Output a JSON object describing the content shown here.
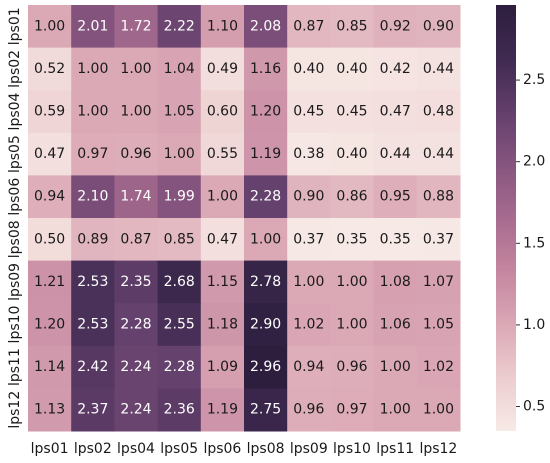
{
  "chart_data": {
    "type": "heatmap",
    "x_labels": [
      "lps01",
      "lps02",
      "lps04",
      "lps05",
      "lps06",
      "lps08",
      "lps09",
      "lps10",
      "lps11",
      "lps12"
    ],
    "y_labels": [
      "lps01",
      "lps02",
      "lps04",
      "lps05",
      "lps06",
      "lps08",
      "lps09",
      "lps10",
      "lps11",
      "lps12"
    ],
    "values": [
      [
        1.0,
        2.01,
        1.72,
        2.22,
        1.1,
        2.08,
        0.87,
        0.85,
        0.92,
        0.9
      ],
      [
        0.52,
        1.0,
        1.0,
        1.04,
        0.49,
        1.16,
        0.4,
        0.4,
        0.42,
        0.44
      ],
      [
        0.59,
        1.0,
        1.0,
        1.05,
        0.6,
        1.2,
        0.45,
        0.45,
        0.47,
        0.48
      ],
      [
        0.47,
        0.97,
        0.96,
        1.0,
        0.55,
        1.19,
        0.38,
        0.4,
        0.44,
        0.44
      ],
      [
        0.94,
        2.1,
        1.74,
        1.99,
        1.0,
        2.28,
        0.9,
        0.86,
        0.95,
        0.88
      ],
      [
        0.5,
        0.89,
        0.87,
        0.85,
        0.47,
        1.0,
        0.37,
        0.35,
        0.35,
        0.37
      ],
      [
        1.21,
        2.53,
        2.35,
        2.68,
        1.15,
        2.78,
        1.0,
        1.0,
        1.08,
        1.07
      ],
      [
        1.2,
        2.53,
        2.28,
        2.55,
        1.18,
        2.9,
        1.02,
        1.0,
        1.06,
        1.05
      ],
      [
        1.14,
        2.42,
        2.24,
        2.28,
        1.09,
        2.96,
        0.94,
        0.96,
        1.0,
        1.02
      ],
      [
        1.13,
        2.37,
        2.24,
        2.36,
        1.19,
        2.75,
        0.96,
        0.97,
        1.0,
        1.0
      ]
    ],
    "value_range": [
      0.35,
      2.96
    ],
    "colorbar_ticks": [
      0.5,
      1.0,
      1.5,
      2.0,
      2.5
    ],
    "colorbar_labels": [
      "0.5",
      "1.0",
      "1.5",
      "2.0",
      "2.5"
    ],
    "colormap_stops": [
      "#f7eae6",
      "#eccdcf",
      "#dba8b6",
      "#c4869f",
      "#a76b8f",
      "#86557f",
      "#623f6b",
      "#3f2a50",
      "#2d1e3e"
    ],
    "text_colors": {
      "dark": "#1a1a1a",
      "light": "#ffffff"
    },
    "title": "",
    "xlabel": "",
    "ylabel": "",
    "grid": false,
    "legend": "colorbar-right"
  }
}
